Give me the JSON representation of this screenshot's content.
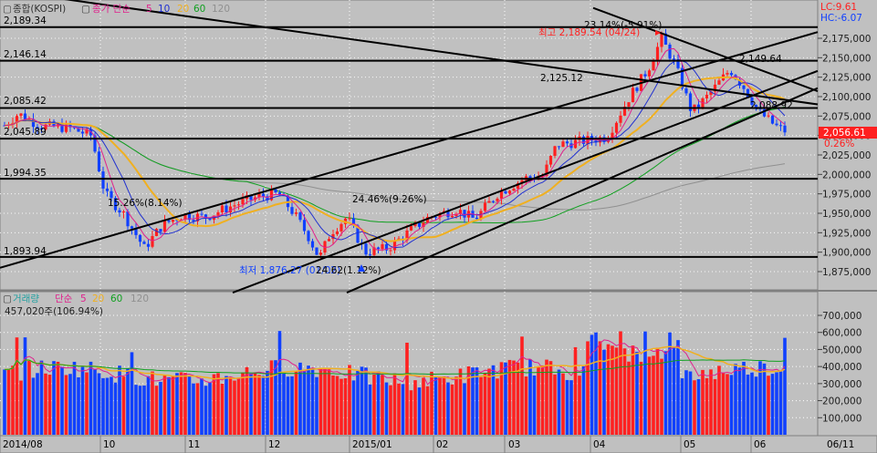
{
  "price_panel": {
    "legend": {
      "checkbox": "▢",
      "name": "종합(KOSPI)",
      "ma_check": "▢",
      "ma_label": "종가 단순",
      "ma_periods": [
        "5",
        "10",
        "20",
        "60",
        "120"
      ],
      "ma_colors": [
        "#e0208c",
        "#2030d0",
        "#f0b020",
        "#10a020",
        "#909090"
      ]
    },
    "lc": "LC:9.61",
    "hc": "HC:-6.07",
    "current_price": "2,056.61",
    "current_change": "0.26%",
    "level_labels": [
      {
        "text": "2,189.34",
        "value": 2189.34
      },
      {
        "text": "2,146.14",
        "value": 2146.14
      },
      {
        "text": "2,085.42",
        "value": 2085.42
      },
      {
        "text": "2,045.89",
        "value": 2045.89
      },
      {
        "text": "1,994.35",
        "value": 1994.35
      },
      {
        "text": "1,893.94",
        "value": 1893.94
      }
    ],
    "annotations": {
      "high": "최고 2,189.54 (04/24)",
      "high_pct": "23.14%(-5.91%)",
      "low": "최저 1,876.27 (01/02)",
      "low_pct": "24.62(1.12%)",
      "pct_a": "15.26%(8.14%)",
      "pct_b": "24.46%(9.26%)",
      "lvl_a": "2,125.12",
      "lvl_b": "2,149.64",
      "lvl_c": "2,088.92"
    },
    "y_ticks": [
      "2,175,000",
      "2,150,000",
      "2,125,000",
      "2,100,000",
      "2,075,000",
      "2,050,000",
      "2,025,000",
      "2,000,000",
      "1,975,000",
      "1,950,000",
      "1,925,000",
      "1,900,000",
      "1,875,000"
    ]
  },
  "volume_panel": {
    "legend": {
      "checkbox": "▢",
      "name": "거래량",
      "ma_label": "단순",
      "ma_periods": [
        "5",
        "20",
        "60",
        "120"
      ]
    },
    "current": "457,020주(106.94%)",
    "y_ticks": [
      "700,000",
      "600,000",
      "500,000",
      "400,000",
      "300,000",
      "200,000",
      "100,000"
    ]
  },
  "x_axis": {
    "labels": [
      "2014/08",
      "10",
      "11",
      "12",
      "2015/01",
      "02",
      "03",
      "04",
      "05",
      "06",
      "06/11"
    ]
  },
  "colors": {
    "up": "#ff2020",
    "down": "#1040ff",
    "background": "#c0c0c0",
    "grid": "#ffffff"
  }
}
